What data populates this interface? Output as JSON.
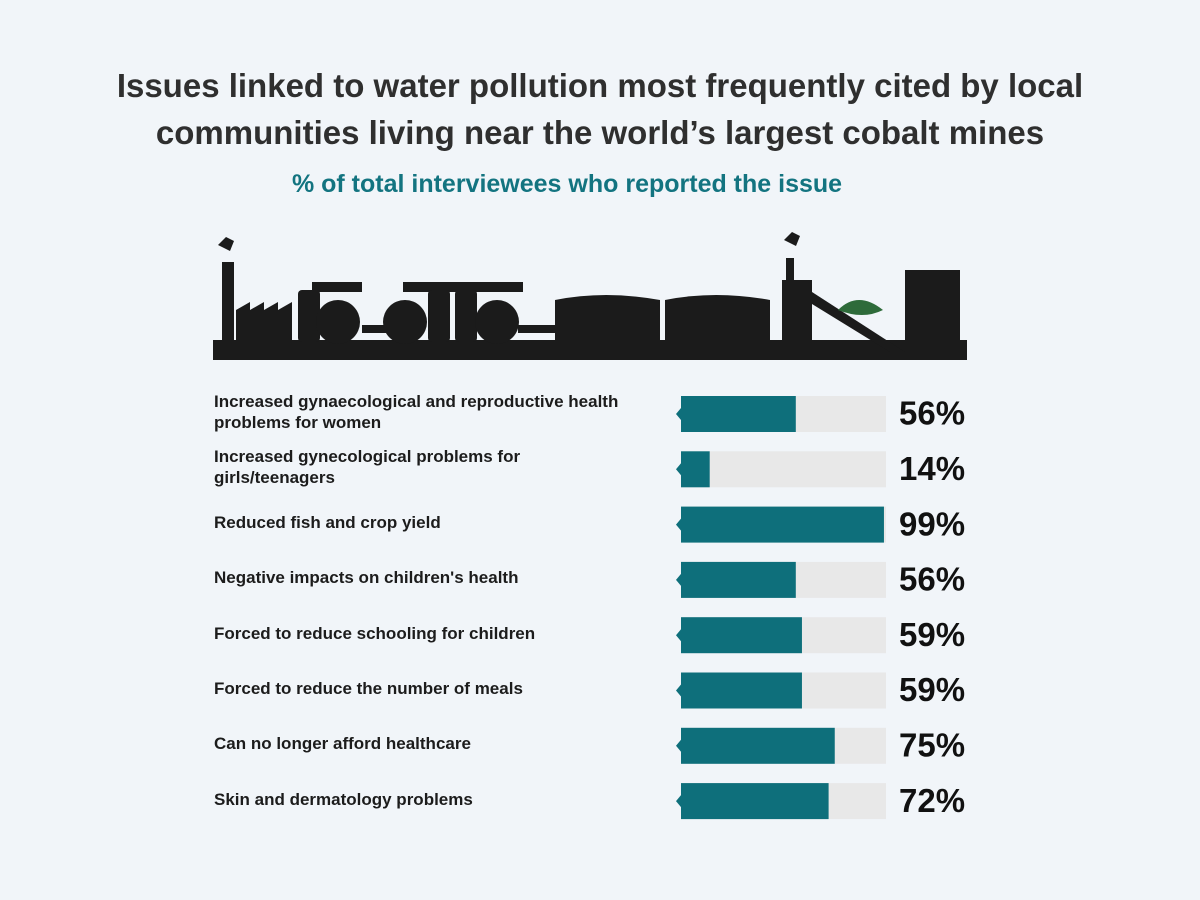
{
  "chart_data": {
    "type": "hbar",
    "title": "Issues linked to water pollution most frequently cited by local communities living near the world’s largest cobalt mines",
    "subtitle": "% of total interviewees who reported the issue",
    "categories": [
      "Increased gynaecological and reproductive health problems for women",
      "Increased gynecological problems for girls/teenagers",
      "Reduced fish and crop yield",
      "Negative impacts on children's health",
      "Forced to reduce schooling for children",
      "Forced to reduce the number of meals",
      "Can no longer afford healthcare",
      "Skin and dermatology problems"
    ],
    "values": [
      56,
      14,
      99,
      56,
      59,
      59,
      75,
      72
    ],
    "value_labels": [
      "56%",
      "14%",
      "99%",
      "56%",
      "59%",
      "59%",
      "75%",
      "72%"
    ],
    "xlim": [
      0,
      100
    ],
    "color": "#0e6f7b",
    "track_color": "#e8e8e8"
  }
}
